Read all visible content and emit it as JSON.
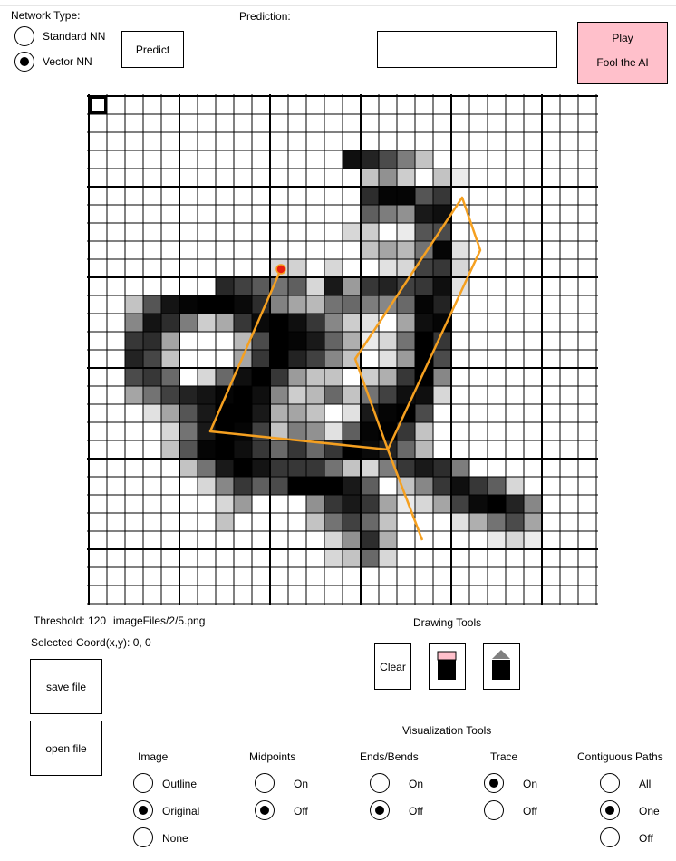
{
  "network_type": {
    "label": "Network Type:",
    "options": [
      {
        "label": "Standard NN",
        "selected": false
      },
      {
        "label": "Vector NN",
        "selected": true
      }
    ]
  },
  "predict_button": "Predict",
  "prediction": {
    "label": "Prediction:",
    "value": ""
  },
  "play_button": {
    "line1": "Play",
    "line2": "Fool the AI",
    "color": "#ffc0cb"
  },
  "status": {
    "threshold": "Threshold: 120",
    "file": "imageFiles/2/5.png",
    "selected_coord": "Selected Coord(x,y): 0, 0"
  },
  "file_buttons": {
    "save": "save file",
    "open": "open file"
  },
  "drawing_tools": {
    "label": "Drawing Tools",
    "clear": "Clear",
    "icons": [
      "pink-square-over-black-icon",
      "gray-triangle-over-black-icon"
    ]
  },
  "visualization": {
    "label": "Visualization Tools",
    "groups": [
      {
        "label": "Image",
        "options": [
          {
            "label": "Outline",
            "selected": false
          },
          {
            "label": "Original",
            "selected": true
          },
          {
            "label": "None",
            "selected": false
          }
        ]
      },
      {
        "label": "Midpoints",
        "options": [
          {
            "label": "On",
            "selected": false
          },
          {
            "label": "Off",
            "selected": true
          }
        ]
      },
      {
        "label": "Ends/Bends",
        "options": [
          {
            "label": "On",
            "selected": false
          },
          {
            "label": "Off",
            "selected": true
          }
        ]
      },
      {
        "label": "Trace",
        "options": [
          {
            "label": "On",
            "selected": true
          },
          {
            "label": "Off",
            "selected": false
          }
        ]
      },
      {
        "label": "Contiguous Paths",
        "options": [
          {
            "label": "All",
            "selected": false
          },
          {
            "label": "One",
            "selected": true
          },
          {
            "label": "Off",
            "selected": false
          }
        ]
      }
    ]
  },
  "grid": {
    "size": 28,
    "pixels": [
      [
        10,
        7,
        215
      ],
      [
        10,
        8,
        190
      ],
      [
        10,
        9,
        165
      ],
      [
        10,
        10,
        140
      ],
      [
        10,
        11,
        160
      ],
      [
        9,
        10,
        40
      ],
      [
        9,
        11,
        45
      ],
      [
        11,
        2,
        60
      ],
      [
        11,
        3,
        170
      ],
      [
        11,
        4,
        235
      ],
      [
        11,
        5,
        250
      ],
      [
        11,
        6,
        255
      ],
      [
        11,
        7,
        255
      ],
      [
        11,
        8,
        245
      ],
      [
        11,
        9,
        210
      ],
      [
        11,
        10,
        125
      ],
      [
        11,
        11,
        90
      ],
      [
        11,
        12,
        70
      ],
      [
        12,
        2,
        120
      ],
      [
        12,
        3,
        235
      ],
      [
        12,
        4,
        210
      ],
      [
        12,
        5,
        130
      ],
      [
        12,
        6,
        50
      ],
      [
        12,
        7,
        85
      ],
      [
        12,
        8,
        200
      ],
      [
        12,
        9,
        245
      ],
      [
        12,
        10,
        255
      ],
      [
        12,
        11,
        240
      ],
      [
        12,
        12,
        200
      ],
      [
        12,
        13,
        120
      ],
      [
        13,
        2,
        200
      ],
      [
        13,
        3,
        210
      ],
      [
        13,
        4,
        90
      ],
      [
        13,
        8,
        70
      ],
      [
        13,
        9,
        180
      ],
      [
        13,
        10,
        255
      ],
      [
        13,
        11,
        250
      ],
      [
        13,
        12,
        230
      ],
      [
        13,
        13,
        155
      ],
      [
        13,
        14,
        80
      ],
      [
        14,
        2,
        220
      ],
      [
        14,
        3,
        185
      ],
      [
        14,
        4,
        60
      ],
      [
        14,
        8,
        90
      ],
      [
        14,
        9,
        200
      ],
      [
        14,
        10,
        255
      ],
      [
        14,
        11,
        220
      ],
      [
        14,
        12,
        190
      ],
      [
        14,
        13,
        120
      ],
      [
        14,
        14,
        60
      ],
      [
        15,
        2,
        180
      ],
      [
        15,
        3,
        200
      ],
      [
        15,
        4,
        150
      ],
      [
        15,
        6,
        40
      ],
      [
        15,
        7,
        150
      ],
      [
        15,
        8,
        240
      ],
      [
        15,
        9,
        255
      ],
      [
        15,
        10,
        200
      ],
      [
        15,
        11,
        100
      ],
      [
        15,
        12,
        60
      ],
      [
        16,
        2,
        90
      ],
      [
        16,
        3,
        140
      ],
      [
        16,
        4,
        190
      ],
      [
        16,
        5,
        220
      ],
      [
        16,
        6,
        235
      ],
      [
        16,
        7,
        250
      ],
      [
        16,
        8,
        255
      ],
      [
        16,
        9,
        240
      ],
      [
        16,
        10,
        120
      ],
      [
        17,
        3,
        30
      ],
      [
        17,
        4,
        90
      ],
      [
        17,
        5,
        170
      ],
      [
        17,
        6,
        230
      ],
      [
        17,
        7,
        255
      ],
      [
        17,
        8,
        255
      ],
      [
        17,
        9,
        230
      ],
      [
        17,
        10,
        80
      ],
      [
        18,
        4,
        40
      ],
      [
        18,
        5,
        140
      ],
      [
        18,
        6,
        230
      ],
      [
        18,
        7,
        255
      ],
      [
        18,
        8,
        250
      ],
      [
        18,
        9,
        190
      ],
      [
        18,
        10,
        60
      ],
      [
        19,
        4,
        60
      ],
      [
        19,
        5,
        170
      ],
      [
        19,
        6,
        250
      ],
      [
        19,
        7,
        255
      ],
      [
        19,
        8,
        240
      ],
      [
        19,
        9,
        200
      ],
      [
        19,
        10,
        150
      ],
      [
        19,
        11,
        60
      ],
      [
        20,
        5,
        60
      ],
      [
        20,
        6,
        140
      ],
      [
        20,
        7,
        230
      ],
      [
        20,
        8,
        255
      ],
      [
        20,
        9,
        235
      ],
      [
        20,
        10,
        200
      ],
      [
        20,
        11,
        230
      ],
      [
        20,
        12,
        200
      ],
      [
        20,
        13,
        140
      ],
      [
        20,
        14,
        60
      ],
      [
        21,
        6,
        40
      ],
      [
        21,
        7,
        120
      ],
      [
        21,
        8,
        200
      ],
      [
        21,
        9,
        160
      ],
      [
        21,
        10,
        180
      ],
      [
        21,
        11,
        255
      ],
      [
        21,
        12,
        255
      ],
      [
        21,
        13,
        255
      ],
      [
        21,
        14,
        230
      ],
      [
        21,
        15,
        160
      ],
      [
        22,
        7,
        40
      ],
      [
        22,
        8,
        100
      ],
      [
        22,
        12,
        110
      ],
      [
        22,
        13,
        200
      ],
      [
        22,
        14,
        230
      ],
      [
        22,
        15,
        200
      ],
      [
        22,
        16,
        90
      ],
      [
        23,
        7,
        60
      ],
      [
        23,
        12,
        60
      ],
      [
        23,
        13,
        140
      ],
      [
        23,
        14,
        190
      ],
      [
        23,
        15,
        150
      ],
      [
        23,
        16,
        60
      ],
      [
        24,
        13,
        40
      ],
      [
        24,
        14,
        110
      ],
      [
        24,
        15,
        210
      ],
      [
        24,
        16,
        80
      ],
      [
        25,
        13,
        40
      ],
      [
        25,
        14,
        60
      ],
      [
        25,
        15,
        150
      ],
      [
        25,
        16,
        40
      ],
      [
        3,
        14,
        240
      ],
      [
        3,
        15,
        220
      ],
      [
        3,
        16,
        180
      ],
      [
        3,
        17,
        130
      ],
      [
        3,
        18,
        60
      ],
      [
        4,
        15,
        60
      ],
      [
        4,
        16,
        110
      ],
      [
        4,
        17,
        50
      ],
      [
        4,
        19,
        60
      ],
      [
        4,
        20,
        20
      ],
      [
        5,
        15,
        210
      ],
      [
        5,
        16,
        250
      ],
      [
        5,
        17,
        250
      ],
      [
        5,
        18,
        170
      ],
      [
        5,
        19,
        200
      ],
      [
        6,
        15,
        160
      ],
      [
        6,
        16,
        130
      ],
      [
        6,
        17,
        110
      ],
      [
        6,
        18,
        230
      ],
      [
        6,
        19,
        240
      ],
      [
        7,
        14,
        40
      ],
      [
        7,
        15,
        50
      ],
      [
        7,
        17,
        20
      ],
      [
        7,
        18,
        170
      ],
      [
        7,
        19,
        180
      ],
      [
        8,
        15,
        60
      ],
      [
        8,
        16,
        90
      ],
      [
        8,
        17,
        70
      ],
      [
        8,
        18,
        140
      ],
      [
        8,
        19,
        250
      ],
      [
        8,
        20,
        30
      ],
      [
        9,
        13,
        40
      ],
      [
        9,
        16,
        30
      ],
      [
        9,
        17,
        40
      ],
      [
        9,
        18,
        190
      ],
      [
        9,
        19,
        200
      ],
      [
        9,
        20,
        40
      ],
      [
        10,
        12,
        40
      ],
      [
        10,
        13,
        230
      ],
      [
        10,
        14,
        100
      ],
      [
        10,
        15,
        200
      ],
      [
        10,
        16,
        220
      ],
      [
        10,
        17,
        190
      ],
      [
        10,
        18,
        200
      ],
      [
        10,
        19,
        240
      ],
      [
        10,
        20,
        30
      ],
      [
        11,
        13,
        140
      ],
      [
        11,
        14,
        150
      ],
      [
        11,
        15,
        130
      ],
      [
        11,
        16,
        120
      ],
      [
        11,
        17,
        150
      ],
      [
        11,
        18,
        250
      ],
      [
        11,
        19,
        220
      ],
      [
        12,
        14,
        50
      ],
      [
        12,
        15,
        30
      ],
      [
        12,
        17,
        90
      ],
      [
        12,
        18,
        240
      ],
      [
        12,
        19,
        250
      ],
      [
        13,
        15,
        20
      ],
      [
        13,
        16,
        40
      ],
      [
        13,
        17,
        140
      ],
      [
        13,
        18,
        255
      ],
      [
        13,
        19,
        200
      ],
      [
        14,
        16,
        30
      ],
      [
        14,
        17,
        100
      ],
      [
        14,
        18,
        255
      ],
      [
        14,
        19,
        180
      ],
      [
        15,
        15,
        50
      ],
      [
        15,
        16,
        80
      ],
      [
        15,
        17,
        200
      ],
      [
        15,
        18,
        255
      ],
      [
        15,
        19,
        120
      ],
      [
        16,
        15,
        140
      ],
      [
        16,
        16,
        190
      ],
      [
        16,
        17,
        240
      ],
      [
        16,
        18,
        240
      ],
      [
        16,
        19,
        40
      ],
      [
        17,
        14,
        30
      ],
      [
        17,
        15,
        230
      ],
      [
        17,
        16,
        250
      ],
      [
        17,
        17,
        255
      ],
      [
        17,
        18,
        180
      ],
      [
        18,
        13,
        30
      ],
      [
        18,
        14,
        160
      ],
      [
        18,
        15,
        250
      ],
      [
        18,
        16,
        255
      ],
      [
        18,
        17,
        200
      ],
      [
        18,
        18,
        60
      ],
      [
        19,
        12,
        40
      ],
      [
        19,
        13,
        200
      ],
      [
        19,
        14,
        255
      ],
      [
        19,
        15,
        245
      ],
      [
        19,
        16,
        220
      ],
      [
        19,
        17,
        150
      ],
      [
        19,
        18,
        70
      ],
      [
        20,
        15,
        40
      ],
      [
        20,
        16,
        130
      ],
      [
        20,
        17,
        200
      ],
      [
        20,
        18,
        230
      ],
      [
        20,
        19,
        210
      ],
      [
        20,
        20,
        130
      ],
      [
        21,
        17,
        60
      ],
      [
        21,
        18,
        120
      ],
      [
        21,
        19,
        200
      ],
      [
        21,
        20,
        240
      ],
      [
        21,
        21,
        200
      ],
      [
        21,
        22,
        160
      ],
      [
        21,
        23,
        40
      ],
      [
        22,
        17,
        20
      ],
      [
        22,
        18,
        40
      ],
      [
        22,
        19,
        90
      ],
      [
        22,
        20,
        190
      ],
      [
        22,
        21,
        245
      ],
      [
        22,
        22,
        255
      ],
      [
        22,
        23,
        220
      ],
      [
        22,
        24,
        120
      ],
      [
        23,
        20,
        30
      ],
      [
        23,
        21,
        80
      ],
      [
        23,
        22,
        140
      ],
      [
        23,
        23,
        180
      ],
      [
        23,
        24,
        90
      ],
      [
        24,
        22,
        20
      ],
      [
        24,
        23,
        40
      ],
      [
        24,
        24,
        20
      ],
      [
        16,
        11,
        50
      ],
      [
        17,
        11,
        90
      ],
      [
        17,
        12,
        60
      ],
      [
        18,
        11,
        130
      ],
      [
        18,
        12,
        110
      ],
      [
        19,
        11,
        200
      ],
      [
        19,
        12,
        150
      ],
      [
        20,
        11,
        200
      ],
      [
        15,
        13,
        60
      ],
      [
        16,
        12,
        70
      ],
      [
        16,
        13,
        150
      ],
      [
        16,
        14,
        60
      ]
    ],
    "trace_path": [
      [
        9.55,
        10.6
      ],
      [
        18.5,
        6.7
      ],
      [
        19.5,
        16.5
      ],
      [
        14.5,
        14.7
      ],
      [
        5.6,
        20.6
      ],
      [
        8.5,
        21.6
      ],
      [
        19.5,
        16.5
      ],
      [
        24.5,
        18.4
      ]
    ],
    "trace_color": "#f5a020",
    "start_point": [
      9.55,
      10.6
    ],
    "start_color": "#e8200f",
    "selected_cell": [
      0,
      0
    ]
  }
}
